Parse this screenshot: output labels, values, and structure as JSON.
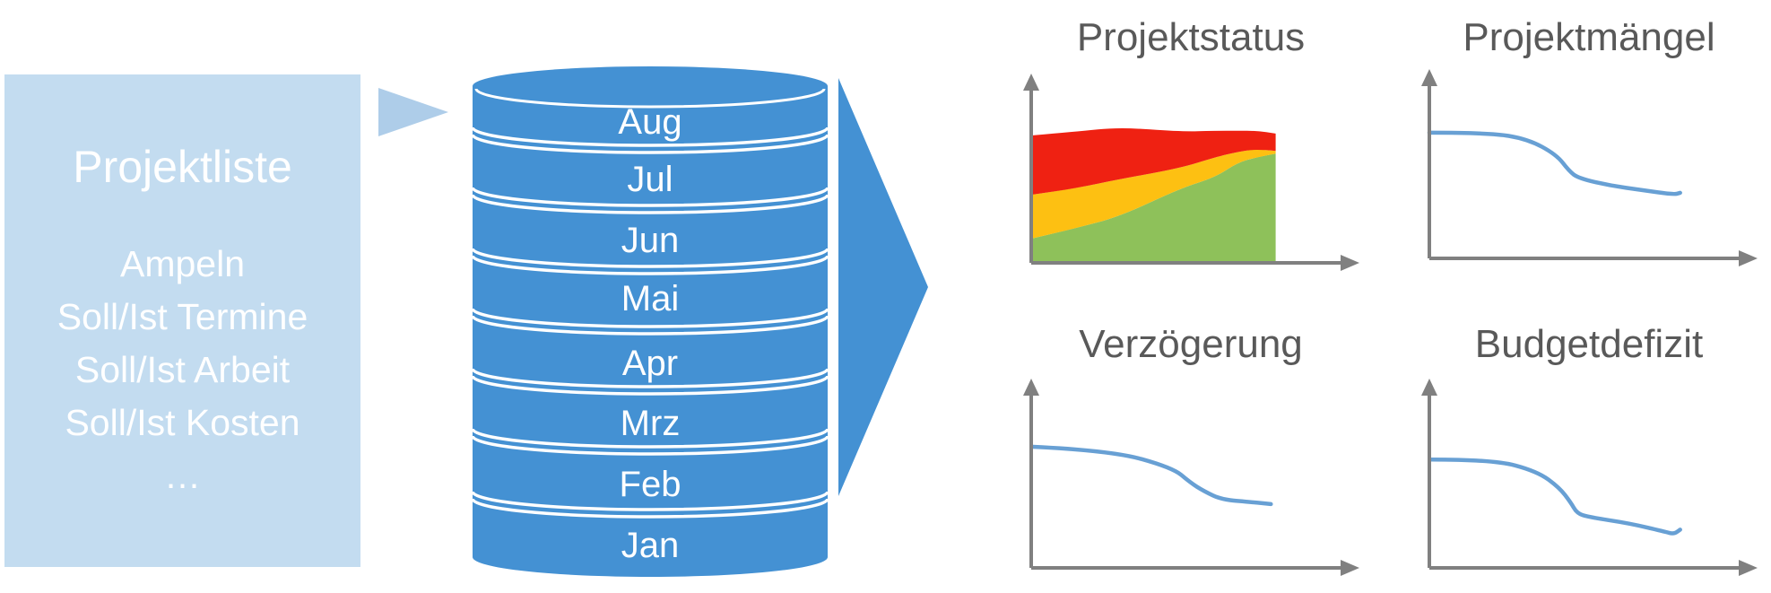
{
  "project_box": {
    "title": "Projektliste",
    "items": [
      "Ampeln",
      "Soll/Ist Termine",
      "Soll/Ist Arbeit",
      "Soll/Ist Kosten",
      "…"
    ]
  },
  "cylinder": {
    "months": [
      "Aug",
      "Jul",
      "Jun",
      "Mai",
      "Apr",
      "Mrz",
      "Feb",
      "Jan"
    ]
  },
  "colors": {
    "box_fill": "#C3DCF0",
    "small_arrow_fill": "#AECDE9",
    "cylinder_fill": "#4491D3",
    "big_arrow_fill": "#4491D3",
    "axis_gray": "#808080",
    "title_gray": "#595959",
    "line_blue": "#68A0D4",
    "area_green": "#8EC15A",
    "area_amber": "#FDC012",
    "area_red": "#EF2112",
    "text_white": "#FFFFFF"
  },
  "chart_data": [
    {
      "type": "area",
      "title": "Projektstatus",
      "stacked": true,
      "x_percent": [
        0.5,
        14,
        28,
        47,
        58,
        65,
        71,
        77
      ],
      "series": [
        {
          "name": "green",
          "color": "#8EC15A",
          "top_percent": [
            13.5,
            19,
            25.5,
            41,
            47,
            55,
            58,
            60
          ]
        },
        {
          "name": "amber",
          "color": "#FDC012",
          "top_percent": [
            37.5,
            41,
            46,
            52,
            58,
            61,
            62.5,
            61.5
          ]
        },
        {
          "name": "red",
          "color": "#EF2112",
          "top_percent": [
            70,
            72,
            74.5,
            72,
            72.5,
            72.5,
            72.5,
            71
          ]
        }
      ],
      "ylim": [
        0,
        100
      ],
      "axes": "arrow axes, no ticks, no grid"
    },
    {
      "type": "line",
      "title": "Projektmängel",
      "color": "#68A0D4",
      "x_percent": [
        0,
        19,
        31,
        40,
        44,
        47,
        57,
        67,
        77,
        79
      ],
      "y_percent": [
        69,
        69,
        65.5,
        57,
        48,
        44,
        40,
        37.5,
        35,
        36
      ],
      "ylim": [
        0,
        100
      ],
      "axes": "arrow axes, no ticks, no grid"
    },
    {
      "type": "line",
      "title": "Verzögerung",
      "color": "#68A0D4",
      "x_percent": [
        0.5,
        25,
        44.5,
        50,
        54.5,
        60,
        70,
        75.5
      ],
      "y_percent": [
        66.5,
        64.5,
        55,
        47,
        42,
        37.5,
        36,
        35
      ],
      "ylim": [
        0,
        100
      ],
      "axes": "arrow axes, no ticks, no grid"
    },
    {
      "type": "line",
      "title": "Budgetdefizit",
      "color": "#68A0D4",
      "x_percent": [
        0.5,
        20,
        34,
        41,
        44.5,
        46.5,
        50,
        63,
        74,
        77,
        79
      ],
      "y_percent": [
        59.5,
        59.5,
        53,
        44,
        36,
        30,
        28,
        24.5,
        20,
        18.5,
        21
      ],
      "ylim": [
        0,
        100
      ],
      "axes": "arrow axes, no ticks, no grid"
    }
  ]
}
